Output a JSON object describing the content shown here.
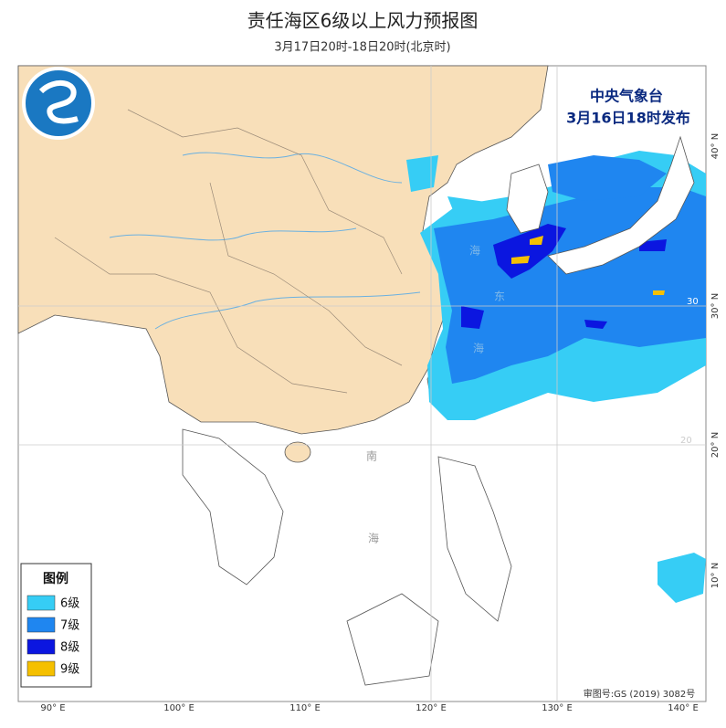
{
  "header": {
    "title": "责任海区6级以上风力预报图",
    "subtitle": "3月17日20时-18日20时(北京时)"
  },
  "issuer": {
    "agency": "中央气象台",
    "issued": "3月16日18时发布"
  },
  "legend": {
    "title": "图例",
    "items": [
      {
        "label": "6级",
        "color": "#36cdf5"
      },
      {
        "label": "7级",
        "color": "#1f86f0"
      },
      {
        "label": "8级",
        "color": "#0b16e0"
      },
      {
        "label": "9级",
        "color": "#f5c000"
      }
    ]
  },
  "longitude_labels": [
    "90° E",
    "100° E",
    "110° E",
    "120° E",
    "130° E",
    "140° E"
  ],
  "latitude_labels": [
    "40° N",
    "30° N",
    "20° N",
    "10° N"
  ],
  "grid_labels": [
    "30",
    "20"
  ],
  "sea_labels": {
    "east_sea": [
      "海",
      "东",
      "海"
    ],
    "south_sea": [
      "南",
      "海"
    ]
  },
  "approval": "审图号:GS (2019) 3082号"
}
